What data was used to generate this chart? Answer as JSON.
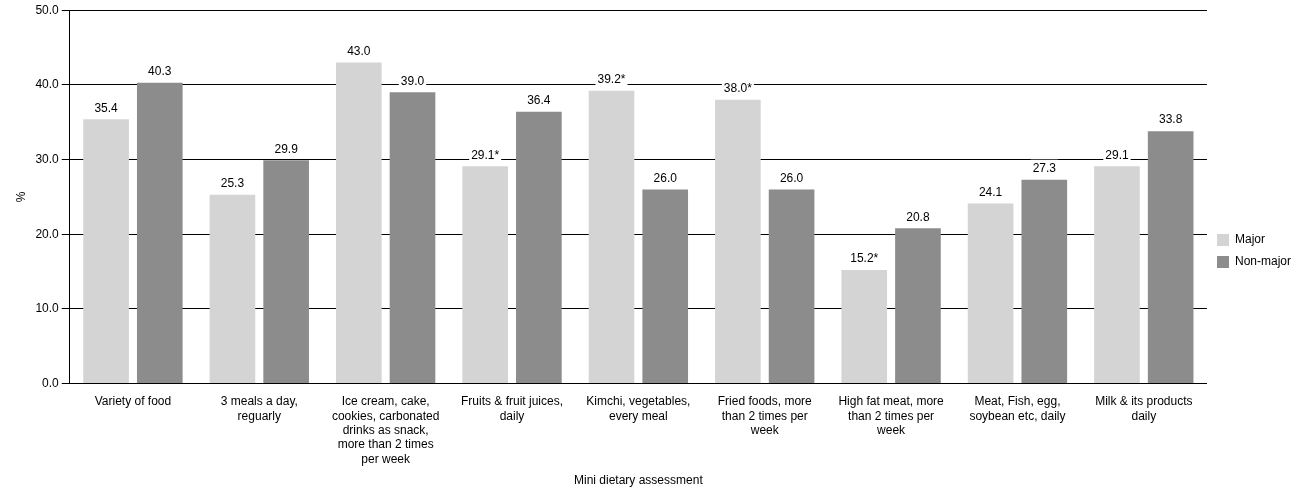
{
  "chart_data": {
    "type": "bar",
    "xlabel": "Mini dietary assessment",
    "ylabel": "%",
    "categories": [
      "Variety of food",
      "3 meals a day, reguarly",
      "Ice cream, cake, cookies, carbonated drinks as snack, more than 2 times per week",
      "Fruits & fruit juices, daily",
      "Kimchi, vegetables, every meal",
      "Fried foods, more than 2 times per week",
      "High fat meat, more than 2 times per week",
      "Meat, Fish, egg, soybean etc, daily",
      "Milk & its products daily"
    ],
    "series": [
      {
        "name": "Major",
        "color": "#d4d4d4",
        "values": [
          35.4,
          25.3,
          43.0,
          29.1,
          39.2,
          38.0,
          15.2,
          24.1,
          29.1
        ],
        "value_labels": [
          "35.4",
          "25.3",
          "43.0",
          "29.1*",
          "39.2*",
          "38.0*",
          "15.2*",
          "24.1",
          "29.1"
        ]
      },
      {
        "name": "Non-major",
        "color": "#8c8c8c",
        "values": [
          40.3,
          29.9,
          39.0,
          36.4,
          26.0,
          26.0,
          20.8,
          27.3,
          33.8
        ],
        "value_labels": [
          "40.3",
          "29.9",
          "39.0",
          "36.4",
          "26.0",
          "26.0",
          "20.8",
          "27.3",
          "33.8"
        ]
      }
    ],
    "ylim": [
      0,
      50
    ],
    "yticks": [
      {
        "value": 0,
        "label": "0.0"
      },
      {
        "value": 10,
        "label": "10.0"
      },
      {
        "value": 20,
        "label": "20.0"
      },
      {
        "value": 30,
        "label": "30.0"
      },
      {
        "value": 40,
        "label": "40.0"
      },
      {
        "value": 50,
        "label": "50.0"
      }
    ],
    "grid": "y",
    "legend": "right"
  }
}
